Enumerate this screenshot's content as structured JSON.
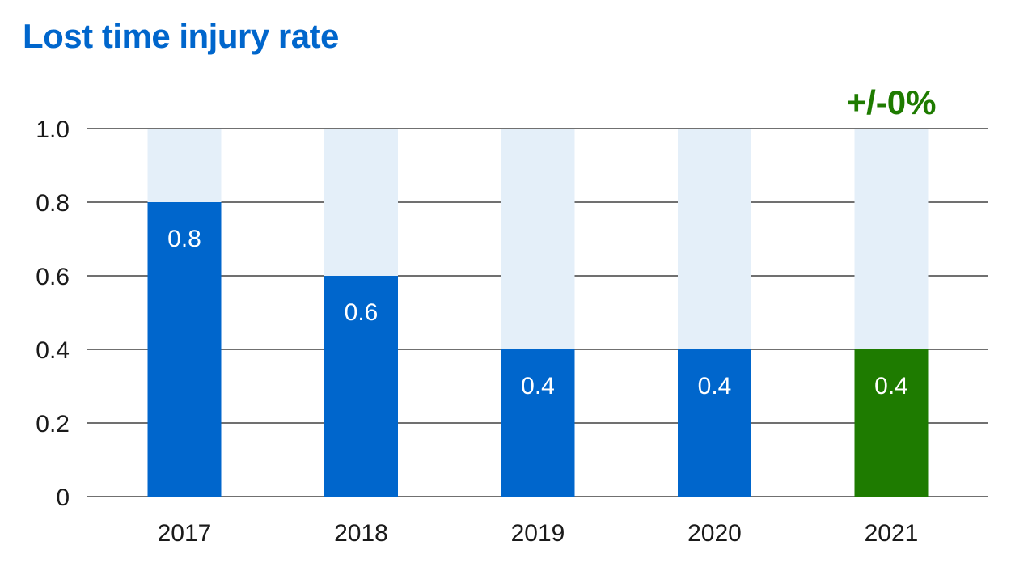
{
  "chart_data": {
    "type": "bar",
    "title": "Lost time injury rate",
    "xlabel": "",
    "ylabel": "",
    "categories": [
      "2017",
      "2018",
      "2019",
      "2020",
      "2021"
    ],
    "values": [
      0.8,
      0.6,
      0.4,
      0.4,
      0.4
    ],
    "data_labels": [
      "0.8",
      "0.6",
      "0.4",
      "0.4",
      "0.4"
    ],
    "ylim": [
      0,
      1.0
    ],
    "yticks": [
      0,
      0.2,
      0.4,
      0.6,
      0.8,
      1.0
    ],
    "ytick_labels": [
      "0",
      "0.2",
      "0.4",
      "0.6",
      "0.8",
      "1.0"
    ],
    "grid": true,
    "highlight_category": "2021",
    "annotations": [
      {
        "category": "2021",
        "text": "+/-0%"
      }
    ],
    "colors": {
      "title": "#0066cc",
      "bar": "#0066cc",
      "highlight_bar": "#1e7b00",
      "bar_background": "#e4eff9",
      "gridline": "#1a1a1a",
      "annotation": "#1e7b00"
    }
  }
}
